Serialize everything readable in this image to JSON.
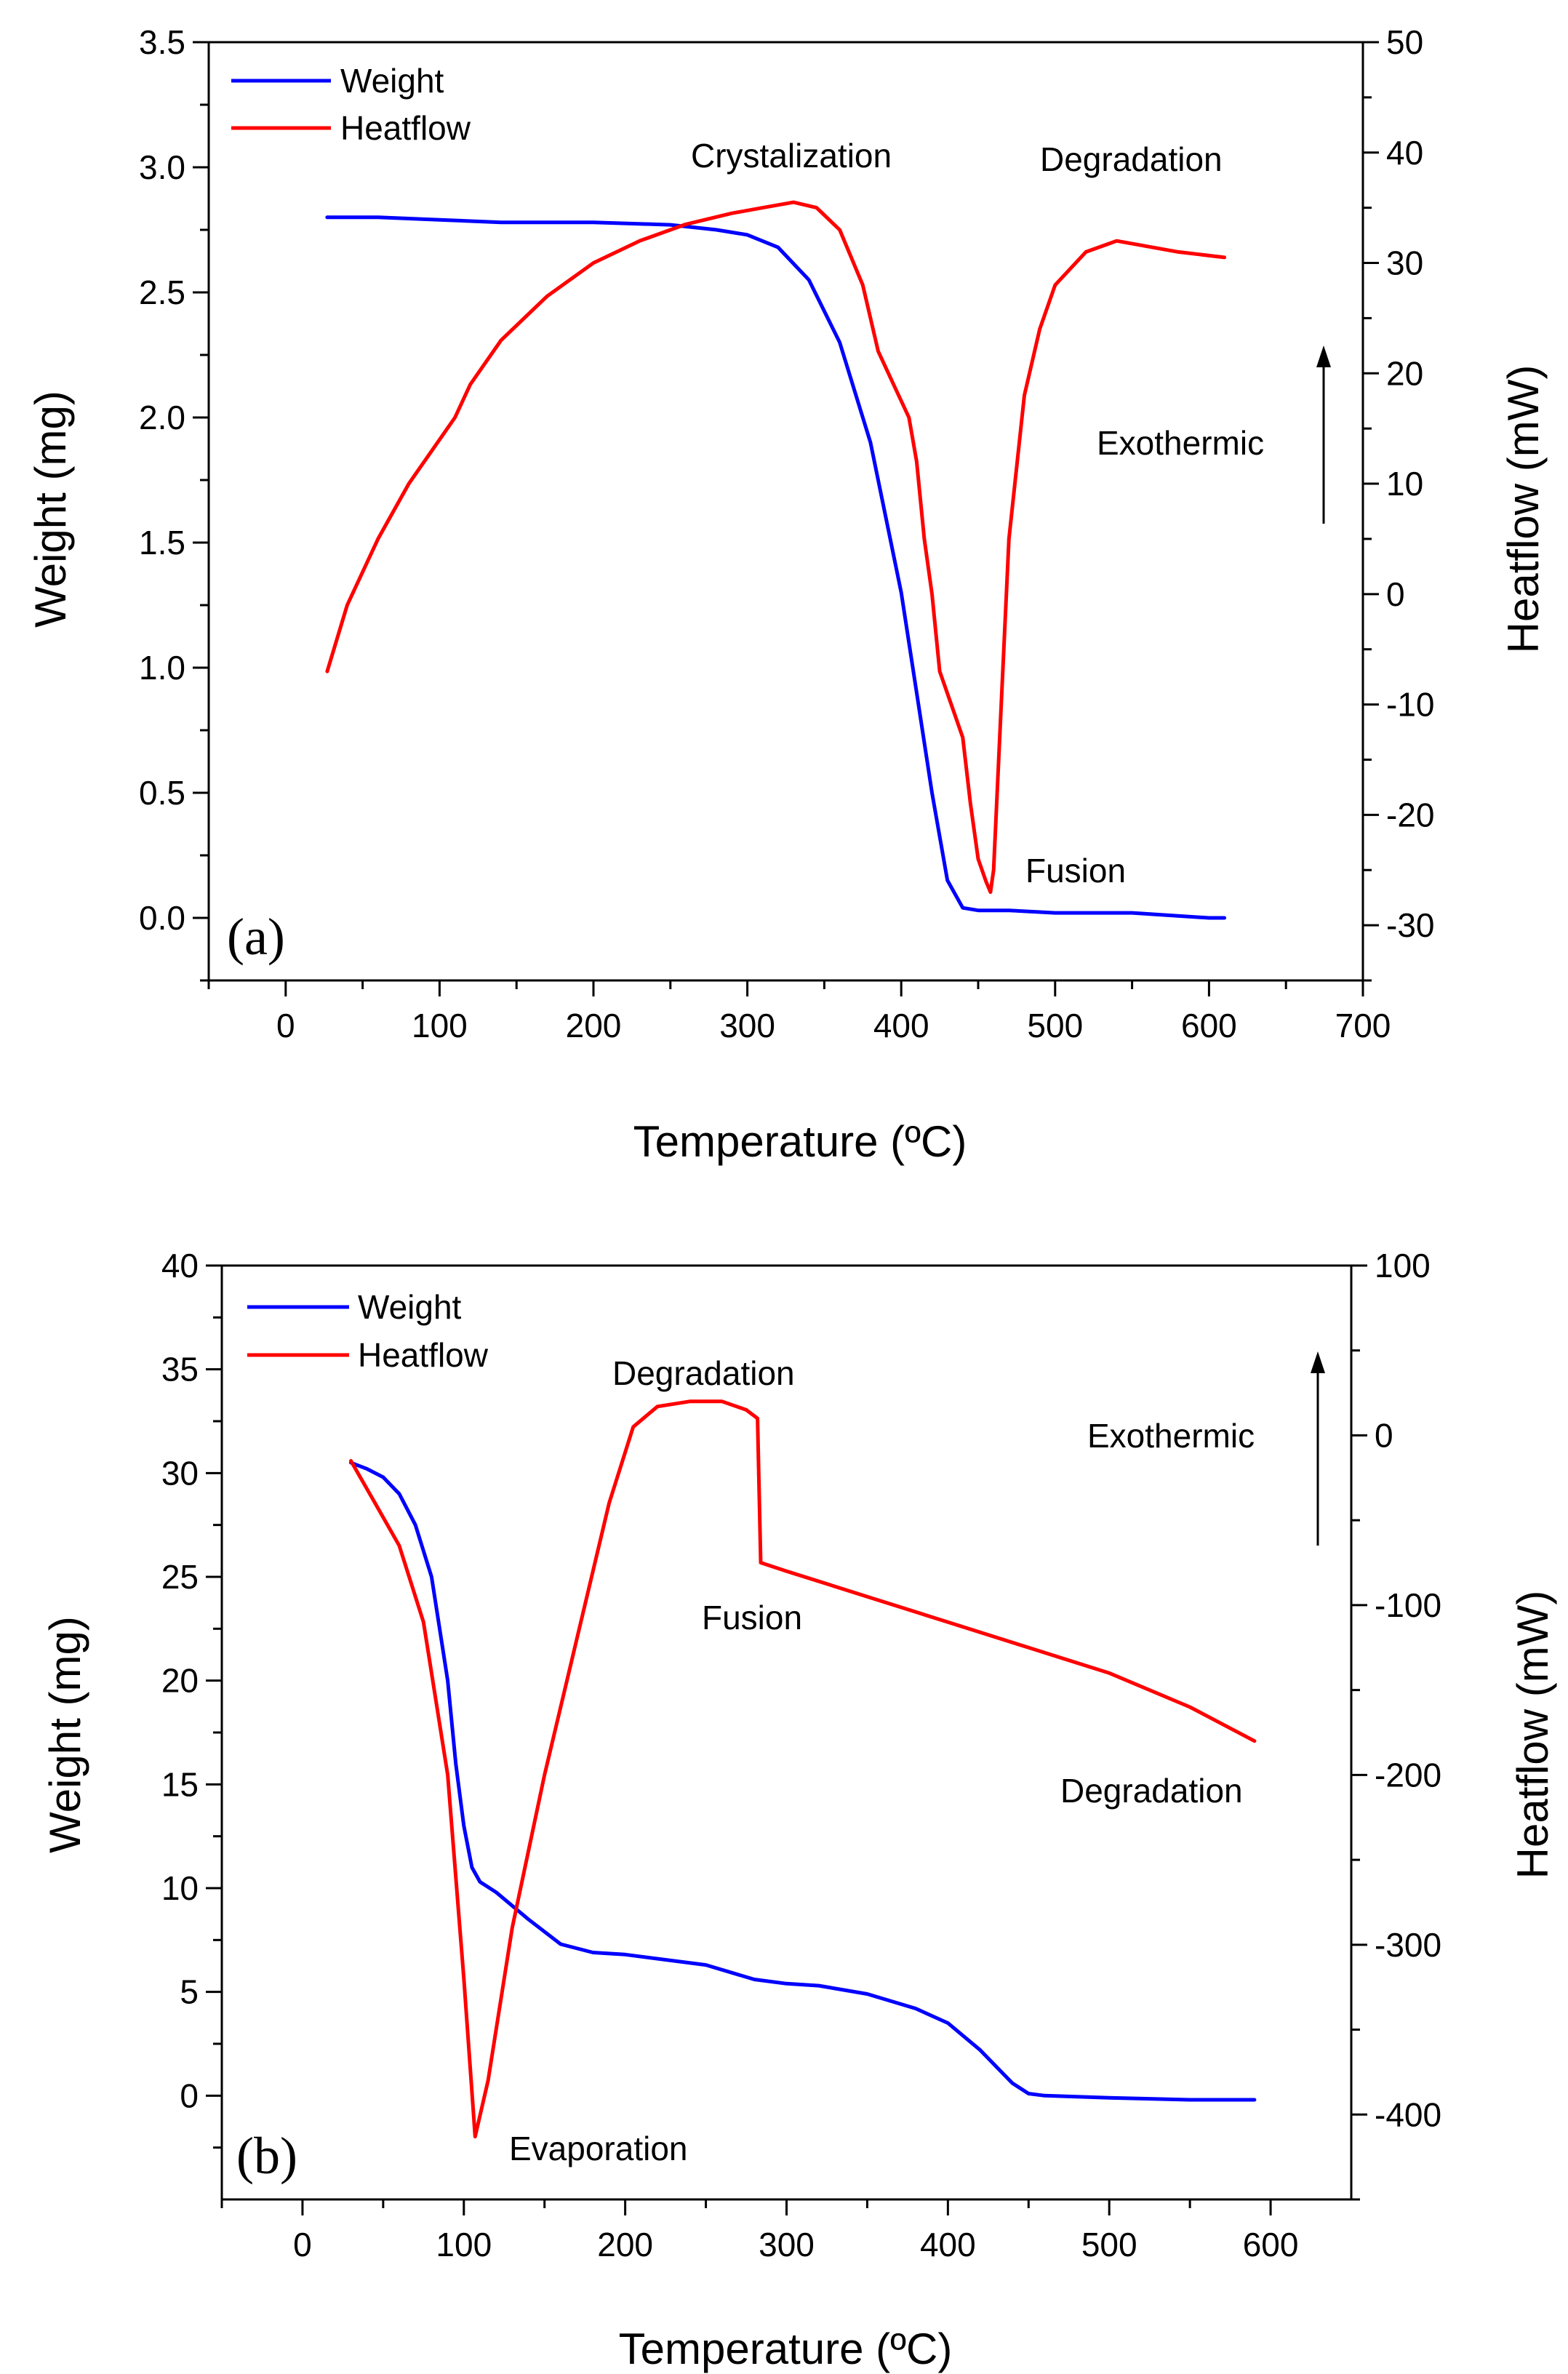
{
  "chart_data": [
    {
      "type": "line",
      "panel_label": "(a)",
      "panel_label_color": "#2ca02c",
      "xlabel": "Temperature (ºC)",
      "ylabel_left": "Weight (mg)",
      "ylabel_right": "Heatflow (mW)",
      "xlim": [
        -50,
        700
      ],
      "xticks": [
        0,
        100,
        200,
        300,
        400,
        500,
        600,
        700
      ],
      "ylim_left": [
        -0.25,
        3.5
      ],
      "yticks_left": [
        "0.0",
        "0.5",
        "1.0",
        "1.5",
        "2.0",
        "2.5",
        "3.0",
        "3.5"
      ],
      "ylim_right": [
        -35,
        50
      ],
      "yticks_right": [
        -30,
        -20,
        -10,
        0,
        10,
        20,
        30,
        40,
        50
      ],
      "legend_position": "top-left",
      "series": [
        {
          "name": "Weight",
          "color": "#0000ff",
          "axis": "left",
          "x": [
            27,
            60,
            100,
            140,
            200,
            250,
            280,
            300,
            320,
            340,
            360,
            380,
            400,
            410,
            420,
            430,
            440,
            450,
            470,
            500,
            550,
            600,
            610
          ],
          "y": [
            2.8,
            2.8,
            2.79,
            2.78,
            2.78,
            2.77,
            2.75,
            2.73,
            2.68,
            2.55,
            2.3,
            1.9,
            1.3,
            0.9,
            0.5,
            0.15,
            0.04,
            0.03,
            0.03,
            0.02,
            0.02,
            0.0,
            0.0
          ]
        },
        {
          "name": "Heatflow",
          "color": "#ff0000",
          "axis": "right",
          "x": [
            27,
            40,
            60,
            80,
            100,
            110,
            120,
            140,
            170,
            200,
            230,
            260,
            290,
            310,
            330,
            345,
            360,
            375,
            385,
            395,
            405,
            410,
            415,
            420,
            425,
            430,
            435,
            440,
            445,
            450,
            455,
            458,
            460,
            465,
            470,
            480,
            490,
            500,
            520,
            540,
            560,
            580,
            610
          ],
          "y": [
            -7,
            -1,
            5,
            10,
            14,
            16,
            19,
            23,
            27,
            30,
            32,
            33.5,
            34.5,
            35,
            35.5,
            35,
            33,
            28,
            22,
            19,
            16,
            12,
            5,
            0,
            -7,
            -9,
            -11,
            -13,
            -19,
            -24,
            -26,
            -27,
            -25,
            -10,
            5,
            18,
            24,
            28,
            31,
            32,
            31.5,
            31,
            30.5
          ]
        }
      ],
      "annotations": [
        "Crystalization",
        "Degradation",
        "Exothermic",
        "Fusion"
      ]
    },
    {
      "type": "line",
      "panel_label": "(b)",
      "panel_label_color": "#2ca02c",
      "xlabel": "Temperature (ºC)",
      "ylabel_left": "Weight (mg)",
      "ylabel_right": "Heatflow (mW)",
      "xlim": [
        -50,
        650
      ],
      "xticks": [
        0,
        100,
        200,
        300,
        400,
        500,
        600
      ],
      "ylim_left": [
        -5,
        40
      ],
      "yticks_left": [
        0,
        5,
        10,
        15,
        20,
        25,
        30,
        35,
        40
      ],
      "ylim_right": [
        -450,
        100
      ],
      "yticks_right": [
        -400,
        -300,
        -200,
        -100,
        0,
        100
      ],
      "legend_position": "top-left",
      "series": [
        {
          "name": "Weight",
          "color": "#0000ff",
          "axis": "left",
          "x": [
            30,
            40,
            50,
            60,
            70,
            80,
            90,
            95,
            100,
            105,
            110,
            120,
            140,
            160,
            180,
            200,
            250,
            280,
            300,
            320,
            350,
            380,
            400,
            420,
            440,
            450,
            460,
            500,
            550,
            590
          ],
          "y": [
            30.5,
            30.2,
            29.8,
            29.0,
            27.5,
            25.0,
            20.0,
            16.0,
            13.0,
            11.0,
            10.3,
            9.8,
            8.5,
            7.3,
            6.9,
            6.8,
            6.3,
            5.6,
            5.4,
            5.3,
            4.9,
            4.2,
            3.5,
            2.2,
            0.6,
            0.1,
            0.0,
            -0.1,
            -0.2,
            -0.2
          ]
        },
        {
          "name": "Heatflow",
          "color": "#ff0000",
          "axis": "right",
          "x": [
            30,
            45,
            60,
            75,
            90,
            100,
            107,
            115,
            130,
            150,
            170,
            190,
            205,
            220,
            240,
            260,
            275,
            282,
            284,
            300,
            350,
            400,
            450,
            500,
            550,
            590
          ],
          "y": [
            -15,
            -40,
            -65,
            -110,
            -200,
            -320,
            -413,
            -380,
            -290,
            -200,
            -120,
            -40,
            5,
            17,
            20,
            20,
            15,
            10,
            -75,
            -80,
            -95,
            -110,
            -125,
            -140,
            -160,
            -180
          ]
        }
      ],
      "annotations": [
        "Degradation",
        "Exothermic",
        "Fusion",
        "Degradation",
        "Evaporation"
      ]
    }
  ]
}
